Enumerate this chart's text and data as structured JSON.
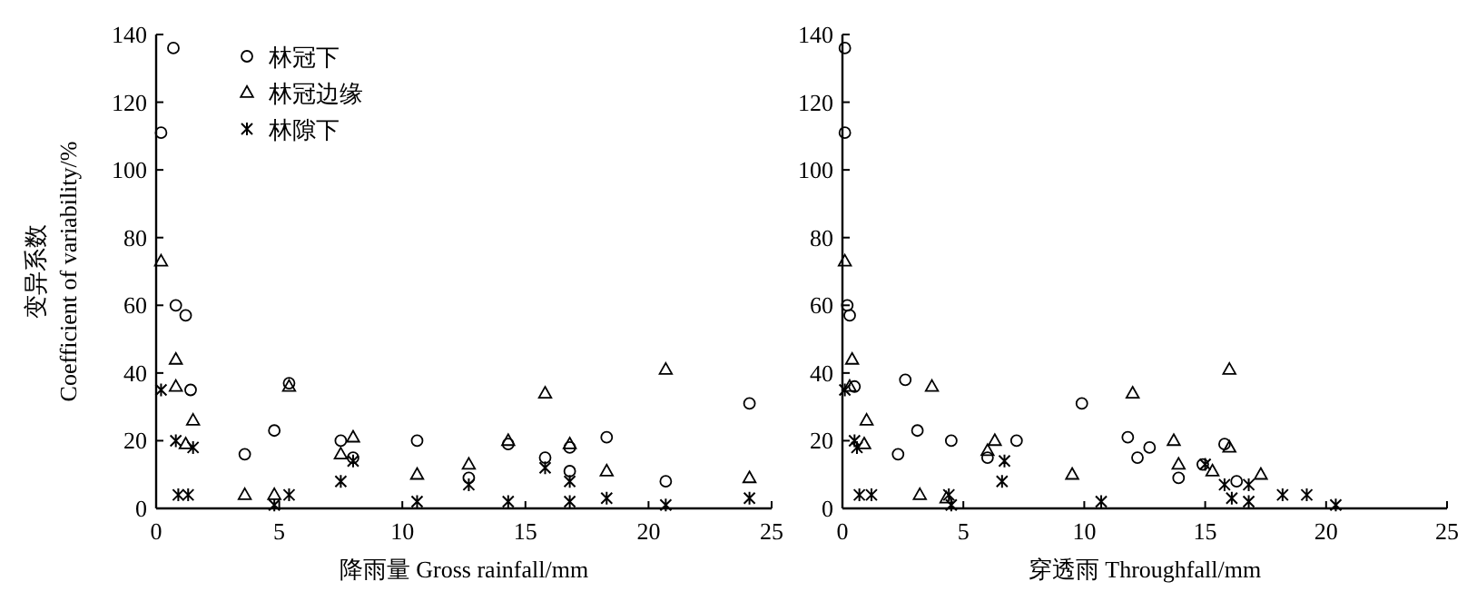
{
  "chart_data": [
    {
      "type": "scatter",
      "xlabel": "降雨量 Gross rainfall/mm",
      "ylabel": "变异系数\nCoefficient of variability/%",
      "xlim": [
        0,
        25
      ],
      "xticks": [
        0,
        5,
        10,
        15,
        20,
        25
      ],
      "ylim": [
        0,
        140
      ],
      "yticks": [
        0,
        20,
        40,
        60,
        80,
        100,
        120,
        140
      ],
      "grid": false,
      "legend": "top left",
      "series": [
        {
          "name": "林冠下",
          "color": "#000000",
          "marker": "circle",
          "x": [
            0.2,
            0.7,
            0.8,
            1.2,
            1.4,
            3.6,
            4.8,
            5.4,
            7.5,
            8.0,
            10.6,
            12.7,
            14.3,
            15.8,
            16.8,
            16.8,
            18.3,
            20.7,
            24.1
          ],
          "values": [
            111,
            136,
            60,
            57,
            35,
            16,
            23,
            37,
            20,
            15,
            20,
            9,
            19,
            15,
            18,
            11,
            21,
            8,
            31
          ]
        },
        {
          "name": "林冠边缘",
          "color": "#000000",
          "marker": "triangle",
          "x": [
            0.2,
            0.8,
            0.8,
            1.2,
            1.5,
            3.6,
            4.8,
            5.4,
            7.5,
            8.0,
            10.6,
            12.7,
            14.3,
            15.8,
            16.8,
            18.3,
            20.7,
            24.1
          ],
          "values": [
            73,
            44,
            36,
            19,
            26,
            4,
            4,
            36,
            16,
            21,
            10,
            13,
            20,
            34,
            19,
            11,
            41,
            9
          ]
        },
        {
          "name": "林隙下",
          "color": "#000000",
          "marker": "cross",
          "x": [
            0.2,
            0.8,
            0.9,
            1.3,
            1.5,
            4.8,
            5.4,
            7.5,
            8.0,
            10.6,
            12.7,
            14.3,
            15.8,
            16.8,
            16.8,
            18.3,
            20.7,
            24.1
          ],
          "values": [
            35,
            20,
            4,
            4,
            18,
            1,
            4,
            8,
            14,
            2,
            7,
            2,
            12,
            8,
            2,
            3,
            1,
            3
          ]
        }
      ]
    },
    {
      "type": "scatter",
      "xlabel": "穿透雨 Throughfall/mm",
      "xlim": [
        0,
        25
      ],
      "xticks": [
        0,
        5,
        10,
        15,
        20,
        25
      ],
      "ylim": [
        0,
        140
      ],
      "yticks": [
        0,
        20,
        40,
        60,
        80,
        100,
        120,
        140
      ],
      "grid": false,
      "series": [
        {
          "color": "#000000",
          "marker": "circle",
          "x": [
            0.1,
            0.1,
            0.2,
            0.3,
            0.5,
            2.6,
            3.1,
            2.3,
            4.5,
            6.0,
            7.2,
            9.9,
            11.8,
            12.2,
            12.7,
            13.9,
            14.9,
            15.8,
            16.3
          ],
          "values": [
            136,
            111,
            60,
            57,
            36,
            38,
            23,
            16,
            20,
            15,
            20,
            31,
            21,
            15,
            18,
            9,
            13,
            19,
            8
          ]
        },
        {
          "color": "#000000",
          "marker": "triangle",
          "x": [
            0.1,
            0.4,
            0.3,
            1.0,
            0.9,
            3.2,
            3.7,
            4.3,
            6.3,
            6.0,
            9.5,
            12.0,
            13.7,
            13.9,
            15.3,
            16.0,
            16.0,
            17.3
          ],
          "values": [
            73,
            44,
            36,
            26,
            19,
            4,
            36,
            3,
            20,
            17,
            10,
            34,
            20,
            13,
            11,
            41,
            18,
            10
          ]
        },
        {
          "color": "#000000",
          "marker": "cross",
          "x": [
            0.1,
            0.5,
            0.6,
            0.7,
            1.2,
            4.4,
            4.5,
            6.7,
            6.6,
            10.7,
            15.0,
            15.8,
            16.1,
            16.8,
            16.8,
            18.2,
            19.2,
            20.4
          ],
          "values": [
            35,
            20,
            18,
            4,
            4,
            4,
            1,
            14,
            8,
            2,
            13,
            7,
            3,
            7,
            2,
            4,
            4,
            1
          ]
        }
      ]
    }
  ]
}
